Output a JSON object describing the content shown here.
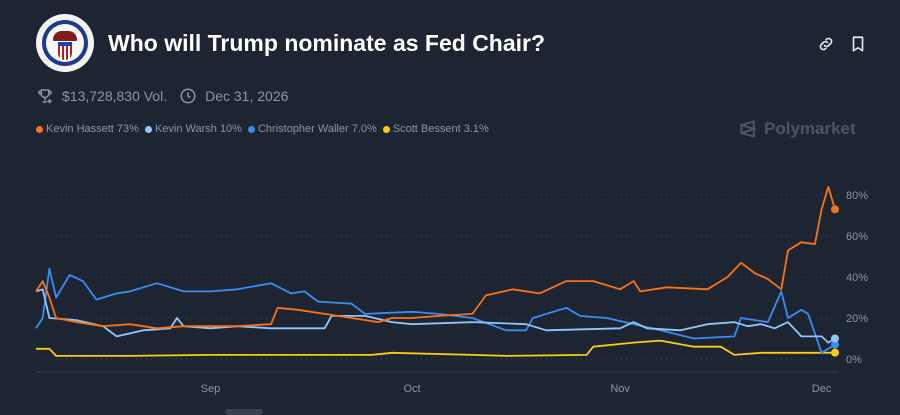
{
  "header": {
    "title": "Who will Trump nominate as Fed Chair?",
    "seal_text": "Board of Governors of the Federal Reserve System"
  },
  "meta": {
    "volume": "$13,728,830 Vol.",
    "end_date": "Dec 31, 2026",
    "volume_icon": "trophy-icon",
    "date_icon": "clock-icon"
  },
  "actions": {
    "link_icon": "link-icon",
    "bookmark_icon": "bookmark-icon"
  },
  "brand": "Polymarket",
  "legend": [
    {
      "label": "Kevin Hassett 73%",
      "color": "#f97316"
    },
    {
      "label": "Kevin Warsh 10%",
      "color": "#93c5fd"
    },
    {
      "label": "Christopher Waller 7.0%",
      "color": "#3b8cf0"
    },
    {
      "label": "Scott Bessent 3.1%",
      "color": "#facc15"
    }
  ],
  "chart_data": {
    "type": "line",
    "title": "",
    "xlabel": "",
    "ylabel": "",
    "xlim": [
      "2025-08-06",
      "2025-12-03"
    ],
    "ylim": [
      0,
      90
    ],
    "grid": true,
    "y_ticks": [
      "0%",
      "20%",
      "40%",
      "60%",
      "80%"
    ],
    "y_tick_values": [
      0,
      20,
      40,
      60,
      80
    ],
    "x_ticks": [
      {
        "label": "Sep",
        "date": "2025-09-01"
      },
      {
        "label": "Oct",
        "date": "2025-10-01"
      },
      {
        "label": "Nov",
        "date": "2025-11-01"
      },
      {
        "label": "Dec",
        "date": "2025-12-01"
      }
    ],
    "legend_position": "top-left",
    "series": [
      {
        "name": "Kevin Hassett",
        "color": "#f97316",
        "points": [
          [
            "2025-08-06",
            33
          ],
          [
            "2025-08-07",
            38
          ],
          [
            "2025-08-08",
            30
          ],
          [
            "2025-08-09",
            20
          ],
          [
            "2025-08-12",
            18
          ],
          [
            "2025-08-16",
            16
          ],
          [
            "2025-08-20",
            17
          ],
          [
            "2025-08-24",
            15
          ],
          [
            "2025-08-28",
            16
          ],
          [
            "2025-09-01",
            16
          ],
          [
            "2025-09-05",
            16
          ],
          [
            "2025-09-10",
            17
          ],
          [
            "2025-09-11",
            25
          ],
          [
            "2025-09-14",
            24
          ],
          [
            "2025-09-18",
            22
          ],
          [
            "2025-09-22",
            20
          ],
          [
            "2025-09-26",
            18
          ],
          [
            "2025-09-28",
            20
          ],
          [
            "2025-10-01",
            20
          ],
          [
            "2025-10-05",
            21
          ],
          [
            "2025-10-10",
            22
          ],
          [
            "2025-10-12",
            31
          ],
          [
            "2025-10-16",
            34
          ],
          [
            "2025-10-20",
            32
          ],
          [
            "2025-10-24",
            38
          ],
          [
            "2025-10-28",
            38
          ],
          [
            "2025-11-01",
            34
          ],
          [
            "2025-11-03",
            38
          ],
          [
            "2025-11-04",
            33
          ],
          [
            "2025-11-08",
            35
          ],
          [
            "2025-11-14",
            34
          ],
          [
            "2025-11-17",
            40
          ],
          [
            "2025-11-19",
            47
          ],
          [
            "2025-11-21",
            42
          ],
          [
            "2025-11-23",
            39
          ],
          [
            "2025-11-25",
            34
          ],
          [
            "2025-11-26",
            53
          ],
          [
            "2025-11-28",
            57
          ],
          [
            "2025-11-30",
            56
          ],
          [
            "2025-12-01",
            73
          ],
          [
            "2025-12-02",
            84
          ],
          [
            "2025-12-03",
            73
          ]
        ]
      },
      {
        "name": "Kevin Warsh",
        "color": "#93c5fd",
        "points": [
          [
            "2025-08-06",
            33
          ],
          [
            "2025-08-07",
            34
          ],
          [
            "2025-08-08",
            20
          ],
          [
            "2025-08-12",
            19
          ],
          [
            "2025-08-16",
            16
          ],
          [
            "2025-08-18",
            11
          ],
          [
            "2025-08-22",
            14
          ],
          [
            "2025-08-26",
            15
          ],
          [
            "2025-08-27",
            20
          ],
          [
            "2025-08-28",
            16
          ],
          [
            "2025-09-01",
            15
          ],
          [
            "2025-09-05",
            16
          ],
          [
            "2025-09-10",
            15
          ],
          [
            "2025-09-18",
            15
          ],
          [
            "2025-09-19",
            21
          ],
          [
            "2025-09-24",
            21
          ],
          [
            "2025-09-28",
            18
          ],
          [
            "2025-10-01",
            17
          ],
          [
            "2025-10-10",
            18
          ],
          [
            "2025-10-18",
            17
          ],
          [
            "2025-10-21",
            14
          ],
          [
            "2025-11-01",
            15
          ],
          [
            "2025-11-03",
            18
          ],
          [
            "2025-11-05",
            15
          ],
          [
            "2025-11-10",
            14
          ],
          [
            "2025-11-14",
            17
          ],
          [
            "2025-11-18",
            18
          ],
          [
            "2025-11-20",
            16
          ],
          [
            "2025-11-22",
            17
          ],
          [
            "2025-11-24",
            15
          ],
          [
            "2025-11-26",
            18
          ],
          [
            "2025-11-28",
            11
          ],
          [
            "2025-12-01",
            11
          ],
          [
            "2025-12-02",
            8
          ],
          [
            "2025-12-03",
            10
          ]
        ]
      },
      {
        "name": "Christopher Waller",
        "color": "#3b8cf0",
        "points": [
          [
            "2025-08-06",
            15
          ],
          [
            "2025-08-07",
            20
          ],
          [
            "2025-08-08",
            44
          ],
          [
            "2025-08-09",
            30
          ],
          [
            "2025-08-11",
            41
          ],
          [
            "2025-08-13",
            38
          ],
          [
            "2025-08-15",
            29
          ],
          [
            "2025-08-18",
            32
          ],
          [
            "2025-08-20",
            33
          ],
          [
            "2025-08-24",
            37
          ],
          [
            "2025-08-28",
            33
          ],
          [
            "2025-09-01",
            33
          ],
          [
            "2025-09-05",
            34
          ],
          [
            "2025-09-10",
            37
          ],
          [
            "2025-09-13",
            32
          ],
          [
            "2025-09-15",
            33
          ],
          [
            "2025-09-17",
            28
          ],
          [
            "2025-09-22",
            27
          ],
          [
            "2025-09-24",
            22
          ],
          [
            "2025-10-01",
            23
          ],
          [
            "2025-10-05",
            22
          ],
          [
            "2025-10-10",
            20
          ],
          [
            "2025-10-15",
            14
          ],
          [
            "2025-10-18",
            14
          ],
          [
            "2025-10-19",
            20
          ],
          [
            "2025-10-24",
            25
          ],
          [
            "2025-10-26",
            21
          ],
          [
            "2025-10-30",
            20
          ],
          [
            "2025-11-07",
            14
          ],
          [
            "2025-11-12",
            10
          ],
          [
            "2025-11-18",
            11
          ],
          [
            "2025-11-19",
            20
          ],
          [
            "2025-11-23",
            18
          ],
          [
            "2025-11-25",
            33
          ],
          [
            "2025-11-26",
            20
          ],
          [
            "2025-11-28",
            24
          ],
          [
            "2025-11-29",
            22
          ],
          [
            "2025-12-01",
            3
          ],
          [
            "2025-12-03",
            7
          ]
        ]
      },
      {
        "name": "Scott Bessent",
        "color": "#facc15",
        "points": [
          [
            "2025-08-06",
            5
          ],
          [
            "2025-08-08",
            5
          ],
          [
            "2025-08-09",
            1.5
          ],
          [
            "2025-08-20",
            1.5
          ],
          [
            "2025-09-01",
            2
          ],
          [
            "2025-09-10",
            2
          ],
          [
            "2025-09-25",
            2
          ],
          [
            "2025-09-28",
            3
          ],
          [
            "2025-10-10",
            2
          ],
          [
            "2025-10-15",
            1.5
          ],
          [
            "2025-10-27",
            2
          ],
          [
            "2025-10-28",
            6
          ],
          [
            "2025-11-03",
            8
          ],
          [
            "2025-11-07",
            9
          ],
          [
            "2025-11-12",
            6
          ],
          [
            "2025-11-16",
            6
          ],
          [
            "2025-11-18",
            2
          ],
          [
            "2025-11-22",
            3
          ],
          [
            "2025-11-25",
            3
          ],
          [
            "2025-12-01",
            3
          ],
          [
            "2025-12-03",
            3.1
          ]
        ]
      }
    ]
  }
}
